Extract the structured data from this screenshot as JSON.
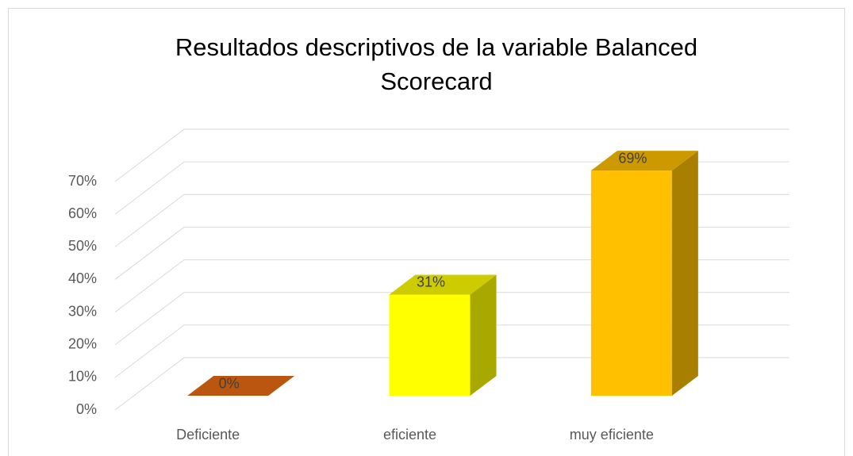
{
  "chart_data": {
    "type": "bar3d",
    "title": "Resultados descriptivos de la variable Balanced Scorecard",
    "categories": [
      "Deficiente",
      "eficiente",
      "muy eficiente"
    ],
    "values": [
      0,
      31,
      69
    ],
    "value_labels": [
      "0%",
      "31%",
      "69%"
    ],
    "colors": [
      "#c55a11",
      "#ffff00",
      "#ffc000"
    ],
    "ylim": [
      0,
      70
    ],
    "yticks": [
      {
        "value": 0,
        "label": "0%"
      },
      {
        "value": 10,
        "label": "10%"
      },
      {
        "value": 20,
        "label": "20%"
      },
      {
        "value": 30,
        "label": "30%"
      },
      {
        "value": 40,
        "label": "40%"
      },
      {
        "value": 50,
        "label": "50%"
      },
      {
        "value": 60,
        "label": "60%"
      },
      {
        "value": 70,
        "label": "70%"
      }
    ],
    "grid": true
  }
}
